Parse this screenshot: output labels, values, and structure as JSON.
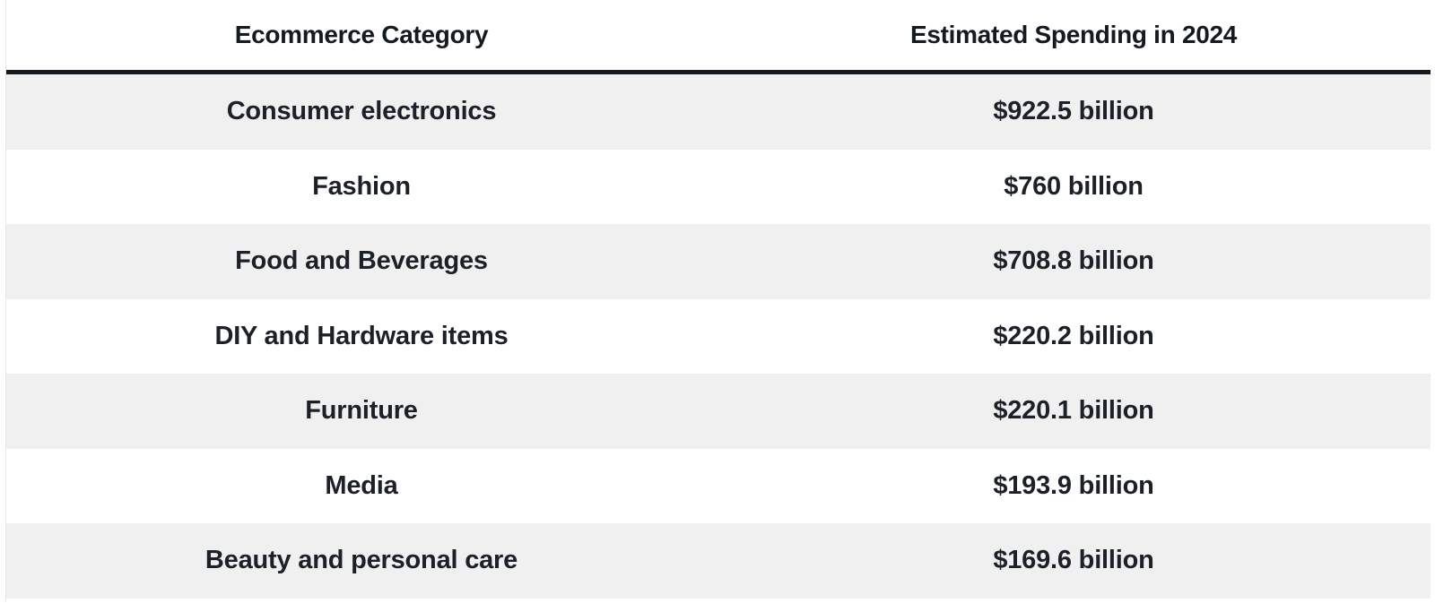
{
  "table": {
    "headers": {
      "category": "Ecommerce Category",
      "spending": "Estimated Spending in 2024"
    },
    "rows": [
      {
        "category": "Consumer electronics",
        "spending": "$922.5 billion"
      },
      {
        "category": "Fashion",
        "spending": "$760 billion"
      },
      {
        "category": "Food and Beverages",
        "spending": "$708.8 billion"
      },
      {
        "category": "DIY and Hardware items",
        "spending": "$220.2 billion"
      },
      {
        "category": "Furniture",
        "spending": "$220.1 billion"
      },
      {
        "category": "Media",
        "spending": "$193.9 billion"
      },
      {
        "category": "Beauty and personal care",
        "spending": "$169.6 billion"
      }
    ]
  },
  "colors": {
    "header_rule": "#141a22",
    "row_shade": "#f0f0f0",
    "text": "#1b2029"
  }
}
